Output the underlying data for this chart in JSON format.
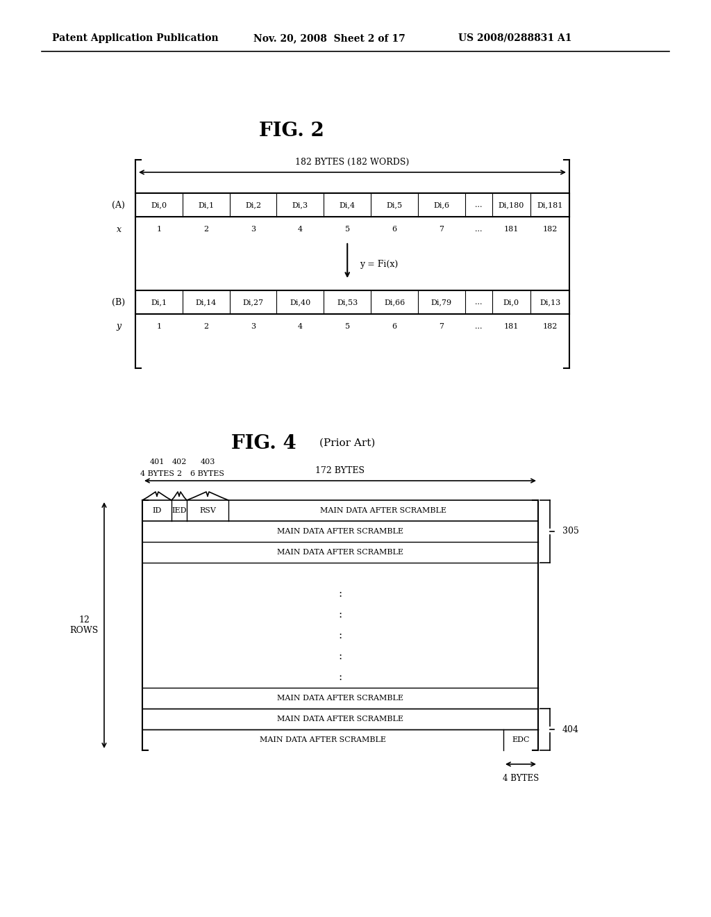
{
  "header_left": "Patent Application Publication",
  "header_mid": "Nov. 20, 2008  Sheet 2 of 17",
  "header_right": "US 2008/0288831 A1",
  "fig2_title": "FIG. 2",
  "fig4_title": "FIG. 4",
  "fig4_subtitle": "(Prior Art)",
  "fig2_span_label": "182 BYTES (182 WORDS)",
  "fig2_A_cells": [
    "Di,0",
    "Di,1",
    "Di,2",
    "Di,3",
    "Di,4",
    "Di,5",
    "Di,6",
    "...",
    "Di,180",
    "Di,181"
  ],
  "fig2_A_x_labels": [
    "1",
    "2",
    "3",
    "4",
    "5",
    "6",
    "7",
    "...",
    "181",
    "182"
  ],
  "fig2_B_cells": [
    "Di,1",
    "Di,14",
    "Di,27",
    "Di,40",
    "Di,53",
    "Di,66",
    "Di,79",
    "...",
    "Di,0",
    "Di,13"
  ],
  "fig2_B_y_labels": [
    "1",
    "2",
    "3",
    "4",
    "5",
    "6",
    "7",
    "...",
    "181",
    "182"
  ],
  "fig2_arrow_label": "y = Fi(x)",
  "fig4_span_label": "172 BYTES",
  "fig4_label_401": "401",
  "fig4_label_402": "402",
  "fig4_label_403": "403",
  "fig4_label_4bytes_top": "4 BYTES",
  "fig4_label_2": "2",
  "fig4_label_6bytes": "6 BYTES",
  "fig4_row_main": "MAIN DATA AFTER SCRAMBLE",
  "fig4_12rows_label": "12\nROWS",
  "fig4_305_label": "305",
  "fig4_404_label": "404",
  "fig4_edc_label": "EDC",
  "fig4_4bytes_bottom": "4 BYTES",
  "bg_color": "#ffffff",
  "text_color": "#000000"
}
